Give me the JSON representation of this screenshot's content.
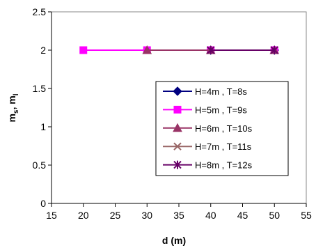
{
  "chart_data": {
    "type": "line",
    "xlabel": "d (m)",
    "ylabel": {
      "base": "m",
      "sub1": "s",
      "sep": ", m",
      "sub2": "l"
    },
    "xlim": [
      15,
      55
    ],
    "ylim": [
      0,
      2.5
    ],
    "xticks": [
      "15",
      "20",
      "25",
      "30",
      "35",
      "40",
      "45",
      "50",
      "55"
    ],
    "yticks": [
      "0",
      "0.5",
      "1",
      "1.5",
      "2",
      "2.5"
    ],
    "grid": false,
    "legend_position": "right-center",
    "series": [
      {
        "name": "H=4m , T=8s",
        "x": [
          40,
          50
        ],
        "y": [
          2,
          2
        ],
        "color": "#000080",
        "marker": "diamond"
      },
      {
        "name": "H=5m , T=9s",
        "x": [
          20,
          30,
          40,
          50
        ],
        "y": [
          2,
          2,
          2,
          2
        ],
        "color": "#FF00FF",
        "marker": "square"
      },
      {
        "name": "H=6m , T=10s",
        "x": [
          30,
          40,
          50
        ],
        "y": [
          2,
          2,
          2
        ],
        "color": "#993366",
        "marker": "triangle"
      },
      {
        "name": "H=7m , T=11s",
        "x": [
          40,
          50
        ],
        "y": [
          2,
          2
        ],
        "color": "#996666",
        "marker": "x"
      },
      {
        "name": "H=8m , T=12s",
        "x": [
          40,
          50
        ],
        "y": [
          2,
          2
        ],
        "color": "#660066",
        "marker": "star"
      }
    ]
  }
}
